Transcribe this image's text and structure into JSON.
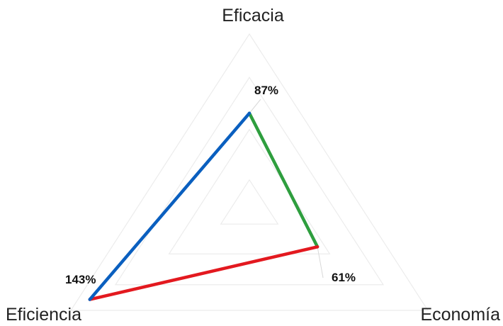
{
  "chart_data": {
    "type": "radar",
    "axes": [
      "Eficacia",
      "Economía",
      "Eficiencia"
    ],
    "values": [
      87,
      61,
      143
    ],
    "value_labels": [
      "87%",
      "61%",
      "143%"
    ],
    "unit": "%",
    "range": [
      0,
      160
    ],
    "grid": true,
    "legend": "none",
    "edge_colors": [
      "#2e9e3e",
      "#e3191f",
      "#0a5fbf"
    ]
  }
}
